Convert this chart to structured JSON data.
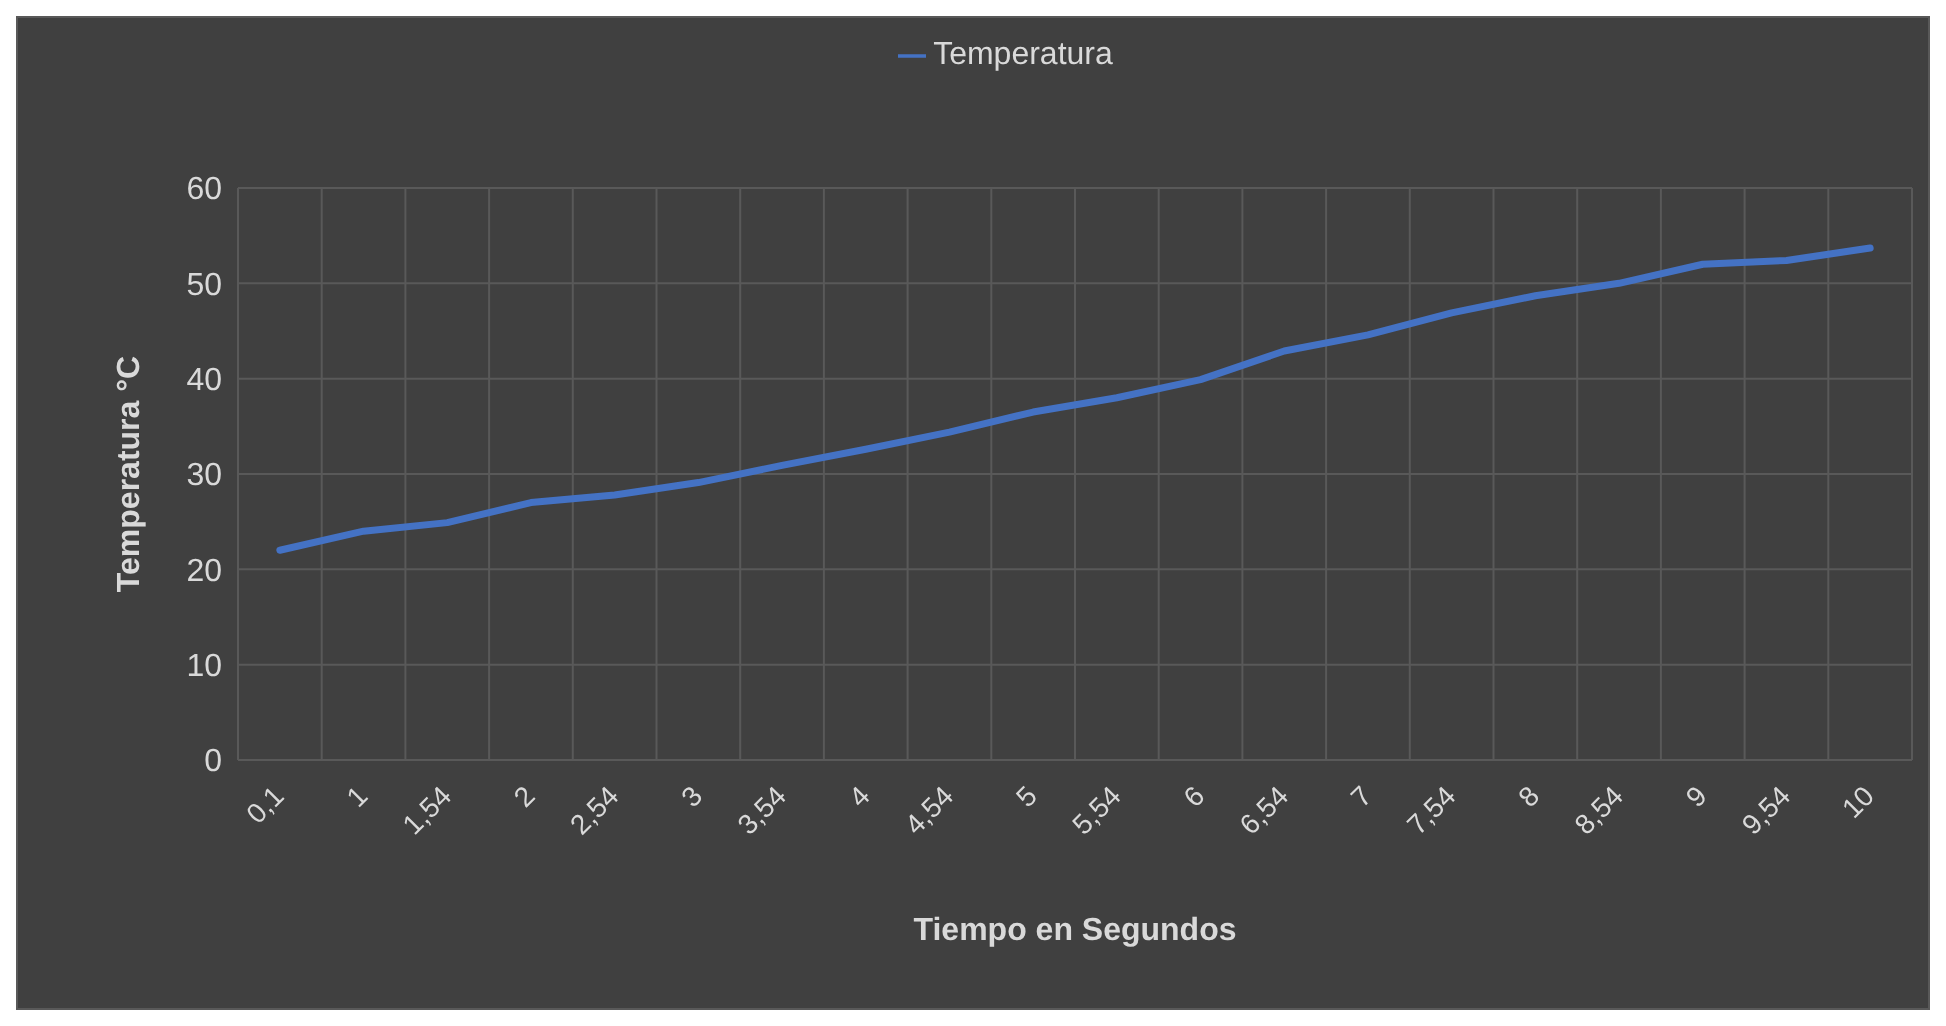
{
  "chart_data": {
    "type": "line",
    "categories": [
      "0,1",
      "1",
      "1,54",
      "2",
      "2,54",
      "3",
      "3,54",
      "4",
      "4,54",
      "5",
      "5,54",
      "6",
      "6,54",
      "7",
      "7,54",
      "8",
      "8,54",
      "9",
      "9,54",
      "10"
    ],
    "series": [
      {
        "name": "Temperatura",
        "color": "#4472c4",
        "values": [
          22.0,
          24.0,
          24.9,
          27.0,
          27.8,
          29.1,
          30.9,
          32.6,
          34.4,
          36.5,
          38.0,
          39.9,
          42.9,
          44.6,
          46.9,
          48.7,
          50.0,
          52.0,
          52.4,
          53.7
        ]
      }
    ],
    "xlabel": "Tiempo en Segundos",
    "ylabel": "Temperatura °C",
    "ylim": [
      0,
      60
    ],
    "yticks": [
      0,
      10,
      20,
      30,
      40,
      50,
      60
    ],
    "grid": true,
    "legend": "top",
    "marker": "none",
    "line_style": "solid"
  }
}
